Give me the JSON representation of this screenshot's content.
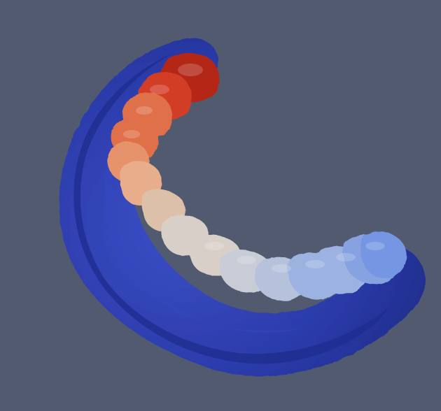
{
  "scene": {
    "background_color": "#525a70",
    "gum_color": "#2a3aa8",
    "gum_shadow_color": "#1c2880",
    "gum_highlight_color": "#3c50c8",
    "tooth_colormap": [
      "#b42818",
      "#d23c28",
      "#e0704a",
      "#e6926a",
      "#e8ad8a",
      "#dcc0aa",
      "#d8d0c8",
      "#c8ccd6",
      "#b6c2dc",
      "#9cb2e0",
      "#86a2e0",
      "#7496e2"
    ]
  }
}
